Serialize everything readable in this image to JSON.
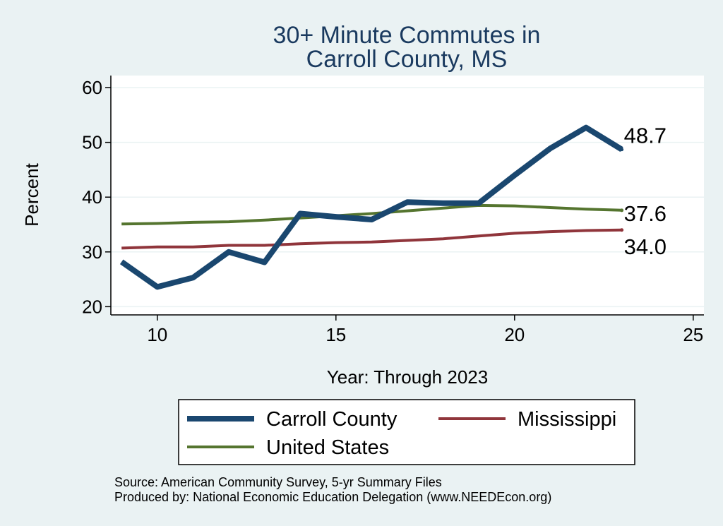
{
  "chart_data": {
    "type": "line",
    "title_lines": [
      "30+ Minute Commutes in",
      "Carroll County, MS"
    ],
    "xlabel": "Year: Through 2023",
    "ylabel": "Percent",
    "xlim": [
      8.7,
      25.3
    ],
    "ylim": [
      18.5,
      62.2
    ],
    "xticks": [
      10,
      15,
      20,
      25
    ],
    "yticks": [
      20,
      30,
      40,
      50,
      60
    ],
    "x": [
      9,
      10,
      11,
      12,
      13,
      14,
      15,
      16,
      17,
      18,
      19,
      20,
      21,
      22,
      23
    ],
    "series": [
      {
        "name": "Carroll County",
        "color": "#1a476f",
        "values": [
          28.2,
          23.6,
          25.3,
          30.0,
          28.1,
          37.0,
          36.4,
          35.9,
          39.1,
          38.9,
          38.9,
          44.0,
          48.9,
          52.7,
          48.7
        ],
        "end_label": "48.7"
      },
      {
        "name": "Mississippi",
        "color": "#90353b",
        "values": [
          30.7,
          30.9,
          30.9,
          31.2,
          31.2,
          31.5,
          31.7,
          31.8,
          32.1,
          32.4,
          32.9,
          33.4,
          33.7,
          33.9,
          34.0
        ],
        "end_label": "34.0"
      },
      {
        "name": "United States",
        "color": "#55752f",
        "values": [
          35.1,
          35.2,
          35.4,
          35.5,
          35.8,
          36.2,
          36.6,
          37.0,
          37.5,
          38.0,
          38.5,
          38.4,
          38.1,
          37.8,
          37.6
        ],
        "end_label": "37.6"
      }
    ],
    "legend": [
      "Carroll County",
      "Mississippi",
      "United States"
    ],
    "source_lines": [
      "Source: American Community Survey, 5-yr Summary Files",
      "Produced by: National Economic Education Delegation (www.NEEDEcon.org)"
    ]
  }
}
